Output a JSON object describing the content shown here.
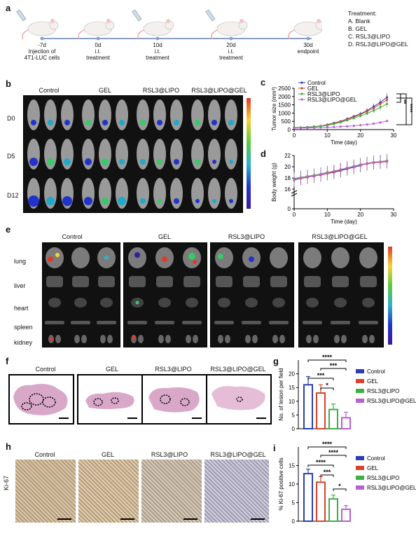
{
  "panel_labels": {
    "a": "a",
    "b": "b",
    "c": "c",
    "d": "d",
    "e": "e",
    "f": "f",
    "g": "g",
    "h": "h",
    "i": "i"
  },
  "timeline": {
    "events": [
      {
        "day": "-7d",
        "desc": "Injection of\n4T1-LUC cells"
      },
      {
        "day": "0d",
        "desc": "i.t.\ntreatment"
      },
      {
        "day": "10d",
        "desc": "i.t.\ntreatment"
      },
      {
        "day": "20d",
        "desc": "i.t.\ntreatment"
      },
      {
        "day": "30d",
        "desc": "endpoint"
      }
    ],
    "treatment_title": "Treatment:",
    "treatments": [
      "A. Blank",
      "B. GEL",
      "C. RSL3@LIPO",
      "D. RSL3@LIPO@GEL"
    ]
  },
  "groups": [
    "Control",
    "GEL",
    "RSL3@LIPO",
    "RSL3@LIPO@GEL"
  ],
  "panel_b": {
    "rows": [
      "D0",
      "D5",
      "D12"
    ]
  },
  "panel_e": {
    "rows": [
      "lung",
      "liver",
      "heart",
      "spleen",
      "kidney"
    ]
  },
  "panel_h": {
    "ylabel": "Ki-67"
  },
  "legend_c": [
    "Control",
    "GEL",
    "RSL3@LIPO",
    "RSL3@LIPO@GEL"
  ],
  "colors": {
    "control": "#2b3fb0",
    "gel": "#d9432a",
    "rsl3lipo": "#3cb043",
    "rsl3lipogel": "#b760d4",
    "axis": "#000000"
  },
  "chart_data": [
    {
      "id": "c",
      "type": "line",
      "xlabel": "Time (day)",
      "ylabel": "Tumor size (mm³)",
      "xlim": [
        0,
        30
      ],
      "ylim": [
        0,
        2500
      ],
      "xticks": [
        0,
        10,
        20,
        30
      ],
      "yticks": [
        0,
        500,
        1000,
        1500,
        2000,
        2500
      ],
      "x": [
        0,
        2,
        4,
        6,
        8,
        10,
        12,
        14,
        16,
        18,
        20,
        22,
        24,
        26,
        28
      ],
      "series": [
        {
          "name": "Control",
          "values": [
            120,
            130,
            150,
            180,
            220,
            300,
            400,
            500,
            650,
            800,
            950,
            1150,
            1400,
            1650,
            1950
          ]
        },
        {
          "name": "GEL",
          "values": [
            110,
            120,
            140,
            170,
            210,
            280,
            370,
            480,
            620,
            760,
            920,
            1100,
            1300,
            1550,
            1800
          ]
        },
        {
          "name": "RSL3@LIPO",
          "values": [
            100,
            110,
            130,
            160,
            200,
            260,
            340,
            440,
            560,
            690,
            830,
            980,
            1150,
            1350,
            1550
          ]
        },
        {
          "name": "RSL3@LIPO@GEL",
          "values": [
            90,
            95,
            100,
            110,
            120,
            140,
            160,
            180,
            200,
            230,
            270,
            310,
            360,
            430,
            520
          ]
        }
      ],
      "significance": [
        "**",
        "****",
        "****"
      ]
    },
    {
      "id": "d",
      "type": "line",
      "xlabel": "Time (day)",
      "ylabel": "Body weight (g)",
      "xlim": [
        0,
        30
      ],
      "ylim": [
        0,
        22
      ],
      "xticks": [
        0,
        10,
        20,
        30
      ],
      "yticks": [
        0,
        16,
        18,
        20,
        22
      ],
      "x": [
        0,
        2,
        4,
        6,
        8,
        10,
        12,
        14,
        16,
        18,
        20,
        22,
        24,
        26,
        28
      ],
      "series": [
        {
          "name": "Control",
          "values": [
            17.8,
            18.0,
            18.2,
            18.3,
            18.6,
            18.8,
            19.0,
            19.3,
            19.6,
            19.9,
            20.2,
            20.6,
            20.8,
            20.9,
            21.0
          ]
        },
        {
          "name": "GEL",
          "values": [
            17.6,
            17.9,
            18.1,
            18.4,
            18.5,
            18.8,
            19.1,
            19.4,
            19.7,
            20.0,
            20.3,
            20.5,
            20.7,
            20.8,
            20.9
          ]
        },
        {
          "name": "RSL3@LIPO",
          "values": [
            17.9,
            18.1,
            18.3,
            18.5,
            18.7,
            19.0,
            19.2,
            19.5,
            19.8,
            20.1,
            20.4,
            20.6,
            20.8,
            20.9,
            21.1
          ]
        },
        {
          "name": "RSL3@LIPO@GEL",
          "values": [
            17.7,
            18.0,
            18.2,
            18.4,
            18.6,
            18.9,
            19.2,
            19.5,
            19.8,
            20.0,
            20.3,
            20.6,
            20.8,
            20.9,
            21.0
          ]
        }
      ]
    },
    {
      "id": "g",
      "type": "bar",
      "ylabel": "No. of lesion per field",
      "categories": [
        "Control",
        "GEL",
        "RSL3@LIPO",
        "RSL3@LIPO@GEL"
      ],
      "values": [
        16,
        13,
        7,
        4
      ],
      "errors": [
        3,
        3,
        2,
        2
      ],
      "ylim": [
        0,
        25
      ],
      "yticks": [
        0,
        5,
        10,
        15,
        20
      ],
      "significance": [
        "****",
        "***",
        "***",
        "*"
      ]
    },
    {
      "id": "i",
      "type": "bar",
      "ylabel": "% Ki-67 positive cells",
      "categories": [
        "Control",
        "GEL",
        "RSL3@LIPO",
        "RSL3@LIPO@GEL"
      ],
      "values": [
        12.8,
        10.5,
        6.0,
        3.2
      ],
      "errors": [
        1.2,
        1.5,
        1.0,
        1.0
      ],
      "ylim": [
        0,
        20
      ],
      "yticks": [
        0,
        5,
        10,
        15
      ],
      "significance": [
        "****",
        "****",
        "****",
        "***",
        "*"
      ]
    }
  ]
}
